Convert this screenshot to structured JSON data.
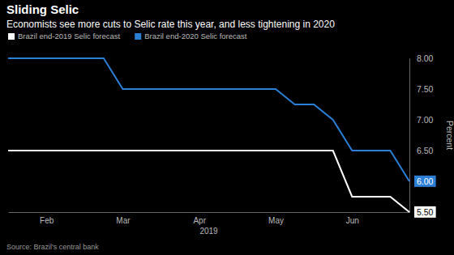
{
  "chart_data": {
    "type": "line",
    "title": "Sliding Selic",
    "subtitle": "Economists see more cuts to Selic rate this year, and less tightening in 2020",
    "categories": [
      null,
      null,
      "Feb",
      null,
      null,
      null,
      "Mar",
      null,
      null,
      null,
      "Apr",
      null,
      null,
      null,
      "May",
      null,
      null,
      null,
      "Jun",
      null,
      null,
      null
    ],
    "xlabel": "2019",
    "ylabel": "Percent",
    "source": "Source: Brazil's central bank",
    "series": [
      {
        "name": "Brazil end-2019 Selic forecast",
        "color": "#ffffff",
        "values": [
          6.5,
          6.5,
          6.5,
          6.5,
          6.5,
          6.5,
          6.5,
          6.5,
          6.5,
          6.5,
          6.5,
          6.5,
          6.5,
          6.5,
          6.5,
          6.5,
          6.5,
          6.5,
          5.75,
          5.75,
          5.75,
          5.5
        ]
      },
      {
        "name": "Brazil end-2020 Selic forecast",
        "color": "#2b7fd6",
        "values": [
          8.0,
          8.0,
          8.0,
          8.0,
          8.0,
          8.0,
          7.5,
          7.5,
          7.5,
          7.5,
          7.5,
          7.5,
          7.5,
          7.5,
          7.5,
          7.25,
          7.25,
          7.0,
          6.5,
          6.5,
          6.5,
          6.0
        ]
      }
    ],
    "ylim": [
      5.5,
      8.0
    ],
    "yticks": [
      {
        "value": 5.5,
        "label": "5.50"
      },
      {
        "value": 6.0,
        "label": "6.00"
      },
      {
        "value": 6.5,
        "label": "6.50"
      },
      {
        "value": 7.0,
        "label": "7.00"
      },
      {
        "value": 7.5,
        "label": "7.50"
      },
      {
        "value": 8.0,
        "label": "8.00"
      }
    ],
    "grid": false,
    "legend": "top"
  }
}
